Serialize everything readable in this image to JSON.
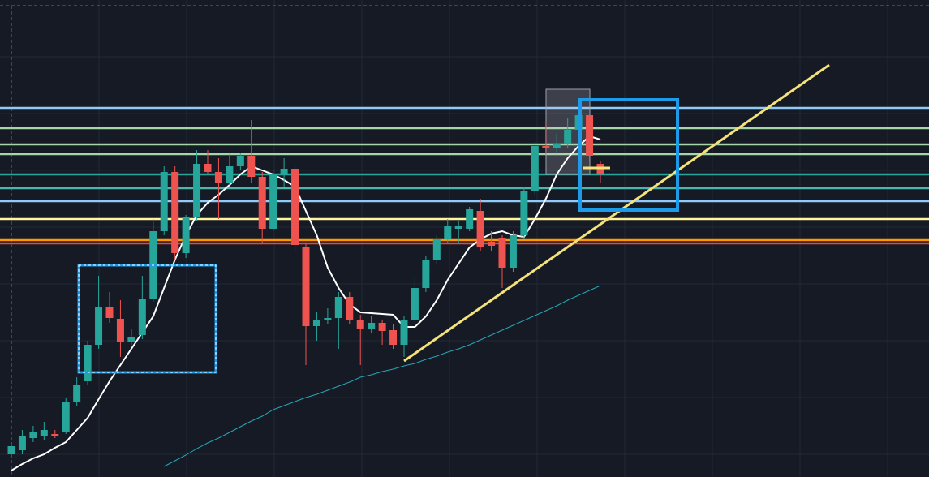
{
  "chart_data": {
    "type": "candlestick",
    "ylim": [
      0,
      588
    ],
    "up_color": "#26a69a",
    "down_color": "#ef5350",
    "open": [
      28,
      33,
      48,
      50,
      53,
      56,
      93,
      118,
      163,
      210,
      195,
      166,
      175,
      220,
      303,
      376,
      276,
      320,
      386,
      376,
      363,
      383,
      396,
      370,
      306,
      373,
      380,
      283,
      186,
      193,
      196,
      222,
      193,
      183,
      190,
      181,
      163,
      193,
      233,
      268,
      293,
      306,
      306,
      328,
      290,
      295,
      258,
      298,
      353,
      408,
      405,
      410,
      428,
      446,
      386
    ],
    "high": [
      43,
      58,
      63,
      68,
      58,
      98,
      123,
      168,
      248,
      228,
      218,
      183,
      248,
      318,
      383,
      383,
      323,
      403,
      403,
      393,
      398,
      400,
      440,
      376,
      378,
      393,
      383,
      288,
      203,
      208,
      228,
      228,
      200,
      198,
      193,
      188,
      198,
      248,
      273,
      298,
      318,
      316,
      333,
      343,
      303,
      298,
      303,
      358,
      413,
      438,
      423,
      443,
      458,
      448,
      390
    ],
    "low": [
      23,
      28,
      43,
      46,
      48,
      53,
      88,
      113,
      158,
      190,
      148,
      163,
      170,
      216,
      298,
      268,
      270,
      316,
      373,
      318,
      360,
      378,
      363,
      288,
      303,
      358,
      278,
      138,
      168,
      188,
      158,
      188,
      138,
      178,
      163,
      158,
      148,
      188,
      228,
      263,
      288,
      288,
      303,
      278,
      278,
      233,
      253,
      293,
      348,
      398,
      398,
      406,
      423,
      388,
      363
    ],
    "close": [
      38,
      50,
      56,
      58,
      50,
      93,
      113,
      163,
      210,
      196,
      166,
      173,
      220,
      303,
      376,
      276,
      320,
      386,
      376,
      363,
      383,
      396,
      370,
      306,
      373,
      380,
      286,
      186,
      193,
      196,
      222,
      193,
      183,
      190,
      180,
      163,
      193,
      233,
      268,
      293,
      310,
      310,
      330,
      283,
      285,
      258,
      298,
      353,
      408,
      405,
      410,
      428,
      446,
      396,
      373
    ],
    "series": [
      {
        "color": "#ffffff",
        "values": [
          8,
          16,
          23,
          28,
          36,
          43,
          58,
          73,
          96,
          118,
          138,
          158,
          178,
          198,
          233,
          268,
          298,
          323,
          338,
          348,
          360,
          373,
          383,
          378,
          373,
          366,
          358,
          328,
          298,
          258,
          233,
          213,
          203,
          202,
          201,
          200,
          185,
          185,
          198,
          218,
          243,
          263,
          283,
          293,
          300,
          303,
          298,
          296,
          318,
          343,
          373,
          393,
          408,
          420,
          416
        ]
      },
      {
        "color": "#26a5b5",
        "values": [
          null,
          null,
          null,
          null,
          null,
          null,
          null,
          null,
          null,
          null,
          null,
          null,
          null,
          null,
          13,
          20,
          27,
          35,
          42,
          48,
          55,
          62,
          69,
          75,
          83,
          88,
          93,
          98,
          102,
          107,
          112,
          117,
          123,
          126,
          130,
          133,
          137,
          140,
          145,
          149,
          154,
          158,
          163,
          169,
          175,
          181,
          187,
          193,
          199,
          205,
          211,
          218,
          224,
          230,
          236
        ]
      }
    ],
    "levels": [
      {
        "value": 455,
        "color": "#90caf9"
      },
      {
        "value": 430,
        "color": "#a5d6a7"
      },
      {
        "value": 410,
        "color": "#a5d6a7"
      },
      {
        "value": 398,
        "color": "#a5d6a7"
      },
      {
        "value": 373,
        "color": "#26a69a"
      },
      {
        "value": 356,
        "color": "#4db6ac"
      },
      {
        "value": 340,
        "color": "#90caf9"
      },
      {
        "value": 318,
        "color": "#fff59d"
      },
      {
        "value": 292,
        "color": "#ff9800"
      },
      {
        "value": 288,
        "color": "#f44336"
      }
    ]
  }
}
